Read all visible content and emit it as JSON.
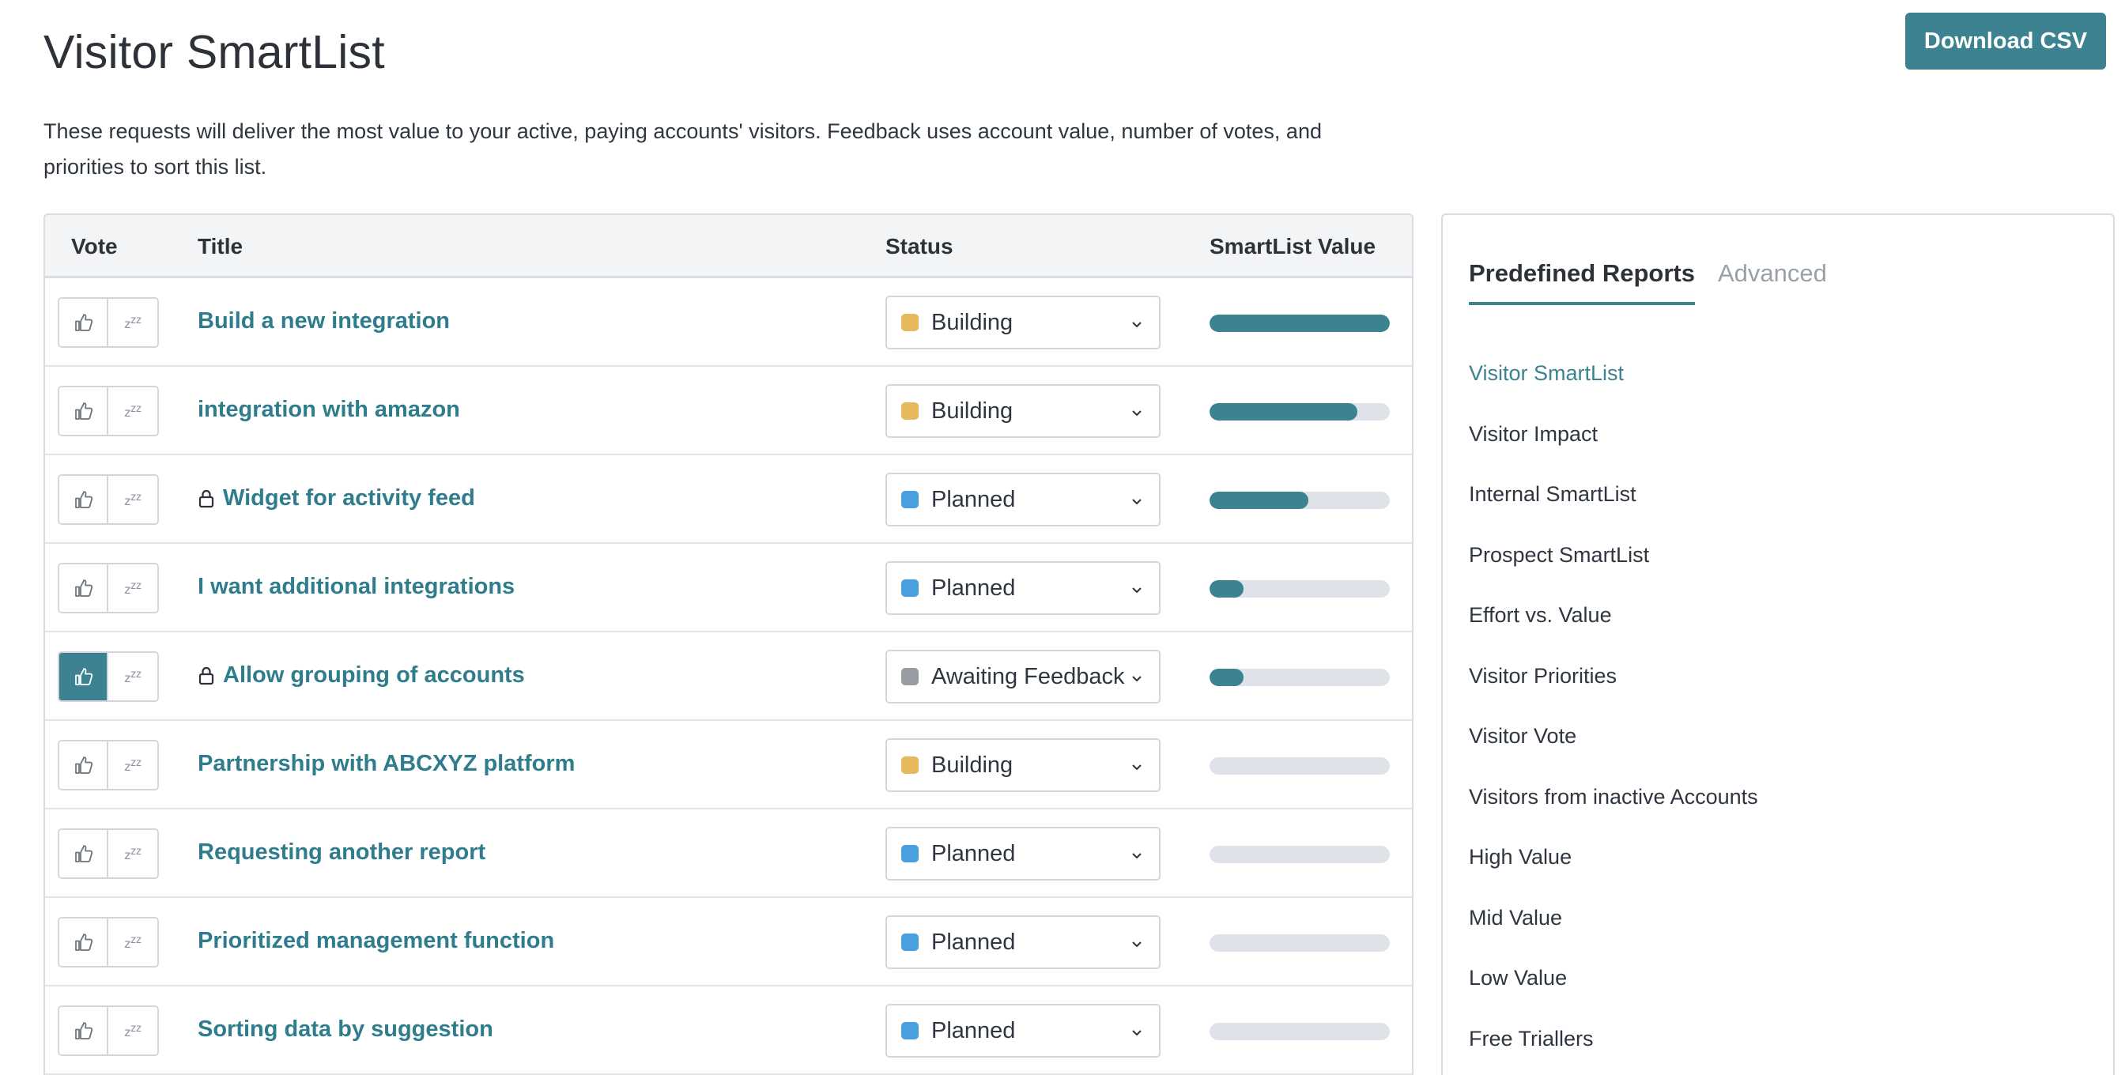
{
  "page": {
    "title": "Visitor SmartList",
    "download_label": "Download CSV",
    "description": "These requests will deliver the most value to your active, paying accounts' visitors. Feedback uses account value, number of votes, and priorities to sort this list."
  },
  "table": {
    "headers": {
      "vote": "Vote",
      "title": "Title",
      "status": "Status",
      "value": "SmartList Value"
    },
    "rows": [
      {
        "title": "Build a new integration",
        "locked": false,
        "voted": false,
        "status": "Building",
        "status_color": "#e8b95a",
        "value_pct": 100
      },
      {
        "title": "integration with amazon",
        "locked": false,
        "voted": false,
        "status": "Building",
        "status_color": "#e8b95a",
        "value_pct": 82
      },
      {
        "title": "Widget for activity feed",
        "locked": true,
        "voted": false,
        "status": "Planned",
        "status_color": "#4a9fdf",
        "value_pct": 55
      },
      {
        "title": "I want additional integrations",
        "locked": false,
        "voted": false,
        "status": "Planned",
        "status_color": "#4a9fdf",
        "value_pct": 19
      },
      {
        "title": "Allow grouping of accounts",
        "locked": true,
        "voted": true,
        "status": "Awaiting Feedback",
        "status_color": "#999da3",
        "value_pct": 19
      },
      {
        "title": "Partnership with ABCXYZ platform",
        "locked": false,
        "voted": false,
        "status": "Building",
        "status_color": "#e8b95a",
        "value_pct": 0
      },
      {
        "title": "Requesting another report",
        "locked": false,
        "voted": false,
        "status": "Planned",
        "status_color": "#4a9fdf",
        "value_pct": 0
      },
      {
        "title": "Prioritized management function",
        "locked": false,
        "voted": false,
        "status": "Planned",
        "status_color": "#4a9fdf",
        "value_pct": 0
      },
      {
        "title": "Sorting data by suggestion",
        "locked": false,
        "voted": false,
        "status": "Planned",
        "status_color": "#4a9fdf",
        "value_pct": 0
      }
    ]
  },
  "sidebar": {
    "tabs": {
      "active": "Predefined Reports",
      "inactive": "Advanced"
    },
    "reports": [
      {
        "label": "Visitor SmartList",
        "active": true
      },
      {
        "label": "Visitor Impact",
        "active": false
      },
      {
        "label": "Internal SmartList",
        "active": false
      },
      {
        "label": "Prospect SmartList",
        "active": false
      },
      {
        "label": "Effort vs. Value",
        "active": false
      },
      {
        "label": "Visitor Priorities",
        "active": false
      },
      {
        "label": "Visitor Vote",
        "active": false
      },
      {
        "label": "Visitors from inactive Accounts",
        "active": false
      },
      {
        "label": "High Value",
        "active": false
      },
      {
        "label": "Mid Value",
        "active": false
      },
      {
        "label": "Low Value",
        "active": false
      },
      {
        "label": "Free Triallers",
        "active": false
      }
    ]
  },
  "colors": {
    "accent": "#3c8291",
    "link": "#2f7d8c"
  }
}
